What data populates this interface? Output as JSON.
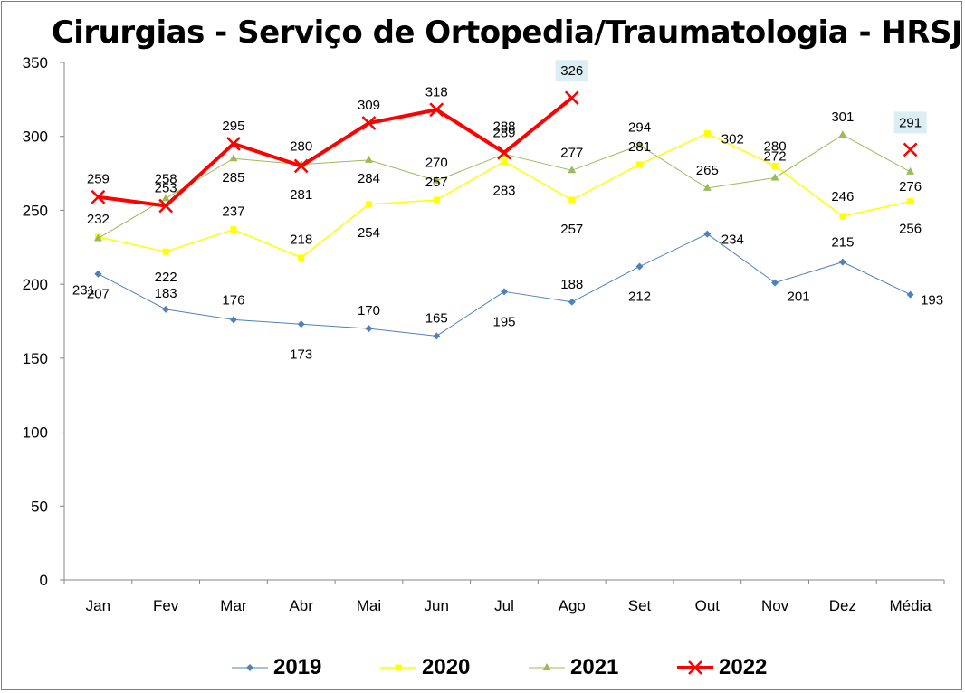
{
  "chart_data": {
    "type": "line",
    "title": "Cirurgias - Serviço de Ortopedia/Traumatologia - HRSJ",
    "categories": [
      "Jan",
      "Fev",
      "Mar",
      "Abr",
      "Mai",
      "Jun",
      "Jul",
      "Ago",
      "Set",
      "Out",
      "Nov",
      "Dez",
      "Média"
    ],
    "ylim": [
      0,
      350
    ],
    "yticks": [
      0,
      50,
      100,
      150,
      200,
      250,
      300,
      350
    ],
    "grid": false,
    "legend": "bottom",
    "series": [
      {
        "name": "2019",
        "color": "#4f81bd",
        "marker": "diamond",
        "values": [
          207,
          183,
          176,
          173,
          170,
          165,
          195,
          188,
          212,
          234,
          201,
          215,
          193
        ]
      },
      {
        "name": "2020",
        "color": "#ffff00",
        "marker": "square",
        "values": [
          232,
          222,
          237,
          218,
          254,
          257,
          283,
          257,
          281,
          302,
          280,
          246,
          256
        ]
      },
      {
        "name": "2021",
        "color": "#9bbb59",
        "marker": "triangle",
        "values": [
          231,
          258,
          285,
          281,
          284,
          270,
          288,
          277,
          294,
          265,
          272,
          301,
          276
        ]
      },
      {
        "name": "2022",
        "color": "#ff0000",
        "marker": "x",
        "values": [
          259,
          253,
          295,
          280,
          309,
          318,
          289,
          326,
          null,
          null,
          null,
          null,
          291
        ]
      }
    ]
  }
}
